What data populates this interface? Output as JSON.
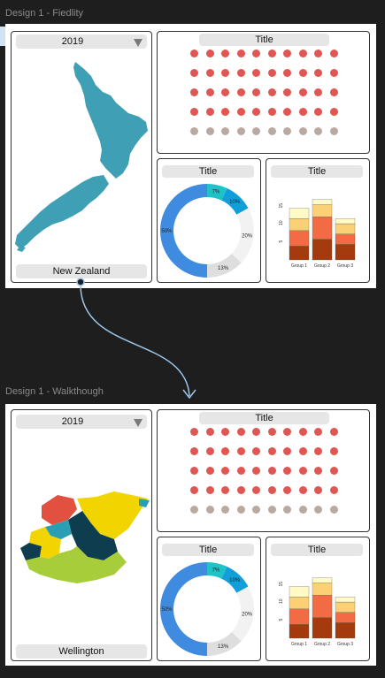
{
  "frames": [
    {
      "label": "Design 1 - Fiedlity",
      "year": "2019",
      "map_label": "New Zealand",
      "map_name": "new-zealand-map",
      "colors": {
        "map": "#3e9fb5"
      },
      "top_title": "Title",
      "donut_title": "Title",
      "bar_title": "Title"
    },
    {
      "label": "Design 1 - Walkthough",
      "year": "2019",
      "map_label": "Wellington",
      "map_name": "wellington-region-map",
      "colors": {
        "map_regions": [
          "#e2503f",
          "#f1d400",
          "#2a9fb4",
          "#0e3d4f",
          "#a7cd3a",
          "#f1d400"
        ]
      },
      "top_title": "Title",
      "donut_title": "Title",
      "bar_title": "Title"
    }
  ],
  "dot_grid": {
    "rows": 5,
    "cols": 10,
    "red_rows": 4,
    "colors": {
      "red": "#e05652",
      "grey": "#b9aaa1"
    }
  },
  "chart_data": [
    {
      "type": "pie",
      "donut": true,
      "labels": [
        "7%",
        "10%",
        "20%",
        "13%",
        "50%"
      ],
      "values": [
        7,
        10,
        20,
        13,
        50
      ],
      "colors": [
        "#1fc3c7",
        "#109fd9",
        "#f2f2f2",
        "#dedede",
        "#3e8be0"
      ]
    },
    {
      "type": "bar",
      "stacked": true,
      "categories": [
        "Group 1",
        "Group 2",
        "Group 3"
      ],
      "series": [
        {
          "values": [
            4,
            6,
            4.5
          ],
          "color": "#a33b0e"
        },
        {
          "values": [
            4.5,
            6.5,
            3
          ],
          "color": "#f26b45"
        },
        {
          "values": [
            3.5,
            3.5,
            3
          ],
          "color": "#fcd175"
        },
        {
          "values": [
            3,
            1.5,
            1.5
          ],
          "color": "#fffac6"
        }
      ],
      "y_ticks": [
        "5",
        "10",
        "15"
      ],
      "ylim": [
        0,
        20
      ]
    }
  ]
}
